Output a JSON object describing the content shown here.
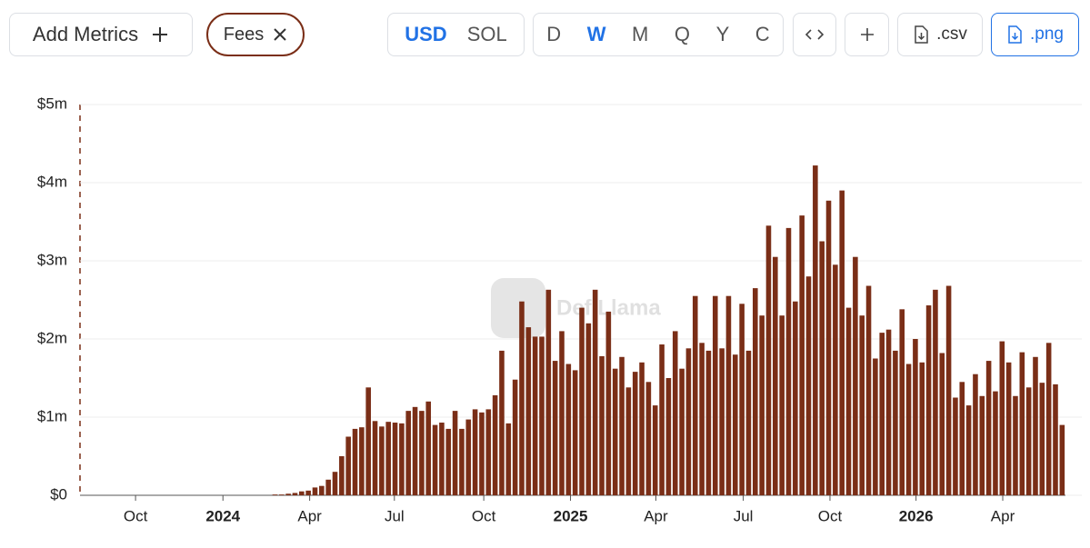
{
  "toolbar": {
    "add_metrics": "Add Metrics",
    "metric": "Fees",
    "currencies": [
      "USD",
      "SOL"
    ],
    "currency_active": 0,
    "periods": [
      "D",
      "W",
      "M",
      "Q",
      "Y",
      "C"
    ],
    "period_active": 1,
    "csv": ".csv",
    "png": ".png"
  },
  "watermark": "DefiLlama",
  "chart_data": {
    "type": "bar",
    "color": "#7a2e17",
    "grid": true,
    "categories": [
      null,
      null,
      null,
      null,
      null,
      null,
      null,
      null,
      null,
      null,
      null,
      null,
      null,
      null,
      null,
      null,
      null,
      null,
      null,
      null,
      null,
      null,
      null,
      null,
      null,
      null,
      null,
      null,
      null,
      null,
      null,
      null,
      null,
      null,
      null,
      null,
      null,
      null,
      null,
      null,
      null,
      null,
      null,
      null,
      null,
      null,
      null,
      null,
      null,
      null,
      null,
      null,
      null,
      null,
      null,
      null,
      null,
      null,
      null,
      null,
      null,
      null,
      null,
      null,
      null,
      null,
      null,
      null,
      null,
      null,
      null,
      null,
      null,
      null,
      null,
      null,
      null,
      null,
      null,
      null,
      null,
      null,
      null,
      null,
      null,
      null,
      null,
      null,
      null,
      null,
      null,
      null,
      null,
      null,
      null,
      null,
      null,
      null,
      null,
      null,
      null,
      null,
      null,
      null,
      null,
      null,
      null,
      null,
      null,
      null,
      null,
      null,
      null,
      null,
      null,
      null,
      null,
      null,
      null,
      null,
      null,
      null,
      null,
      null,
      null,
      null,
      null,
      null,
      null,
      null,
      null,
      null,
      null,
      null,
      null,
      null,
      null,
      null,
      null,
      null,
      null,
      null,
      null,
      null,
      null,
      null,
      null,
      null
    ],
    "values": [
      0,
      0,
      0,
      0,
      0,
      0,
      0,
      0,
      0,
      0,
      0,
      0,
      0,
      0,
      0,
      0,
      0,
      0,
      0,
      0,
      0,
      0,
      0,
      0,
      0,
      0,
      0,
      0,
      0,
      0.01,
      0.01,
      0.02,
      0.03,
      0.05,
      0.06,
      0.1,
      0.12,
      0.2,
      0.3,
      0.5,
      0.75,
      0.85,
      0.87,
      1.38,
      0.95,
      0.88,
      0.94,
      0.93,
      0.92,
      1.08,
      1.13,
      1.08,
      1.2,
      0.9,
      0.93,
      0.85,
      1.08,
      0.85,
      0.97,
      1.1,
      1.06,
      1.1,
      1.28,
      1.85,
      0.92,
      1.48,
      2.48,
      2.15,
      2.03,
      2.03,
      2.63,
      1.72,
      2.1,
      1.68,
      1.6,
      2.4,
      2.2,
      2.63,
      1.78,
      2.35,
      1.62,
      1.77,
      1.38,
      1.58,
      1.7,
      1.45,
      1.15,
      1.93,
      1.5,
      2.1,
      1.62,
      1.88,
      2.55,
      1.95,
      1.85,
      2.55,
      1.88,
      2.55,
      1.8,
      2.45,
      1.85,
      2.65,
      2.3,
      3.45,
      3.05,
      2.3,
      3.42,
      2.48,
      3.58,
      2.8,
      4.22,
      3.25,
      3.77,
      2.95,
      3.9,
      2.4,
      3.05,
      2.3,
      2.68,
      1.75,
      2.08,
      2.12,
      1.85,
      2.38,
      1.68,
      2.0,
      1.7,
      2.43,
      2.63,
      1.82,
      2.68,
      1.25,
      1.45,
      1.15,
      1.55,
      1.27,
      1.72,
      1.33,
      1.97,
      1.7,
      1.27,
      1.83,
      1.38,
      1.77,
      1.44,
      1.95,
      1.42,
      0.9
    ],
    "ylim": [
      0,
      5
    ],
    "yticks": [
      {
        "value": 0,
        "label": "$0"
      },
      {
        "value": 1,
        "label": "$1m"
      },
      {
        "value": 2,
        "label": "$2m"
      },
      {
        "value": 3,
        "label": "$3m"
      },
      {
        "value": 4,
        "label": "$4m"
      },
      {
        "value": 5,
        "label": "$5m"
      }
    ],
    "xticks": [
      {
        "value": 8.1,
        "label": "Oct"
      },
      {
        "value": 21.2,
        "label": "2024"
      },
      {
        "value": 34.2,
        "label": "Apr"
      },
      {
        "value": 46.9,
        "label": "Jul"
      },
      {
        "value": 60.3,
        "label": "Oct"
      },
      {
        "value": 73.3,
        "label": "2025"
      },
      {
        "value": 86.1,
        "label": "Apr"
      },
      {
        "value": 99.2,
        "label": "Jul"
      },
      {
        "value": 112.2,
        "label": "Oct"
      },
      {
        "value": 125.1,
        "label": "2026"
      },
      {
        "value": 138.1,
        "label": "Apr"
      }
    ]
  }
}
